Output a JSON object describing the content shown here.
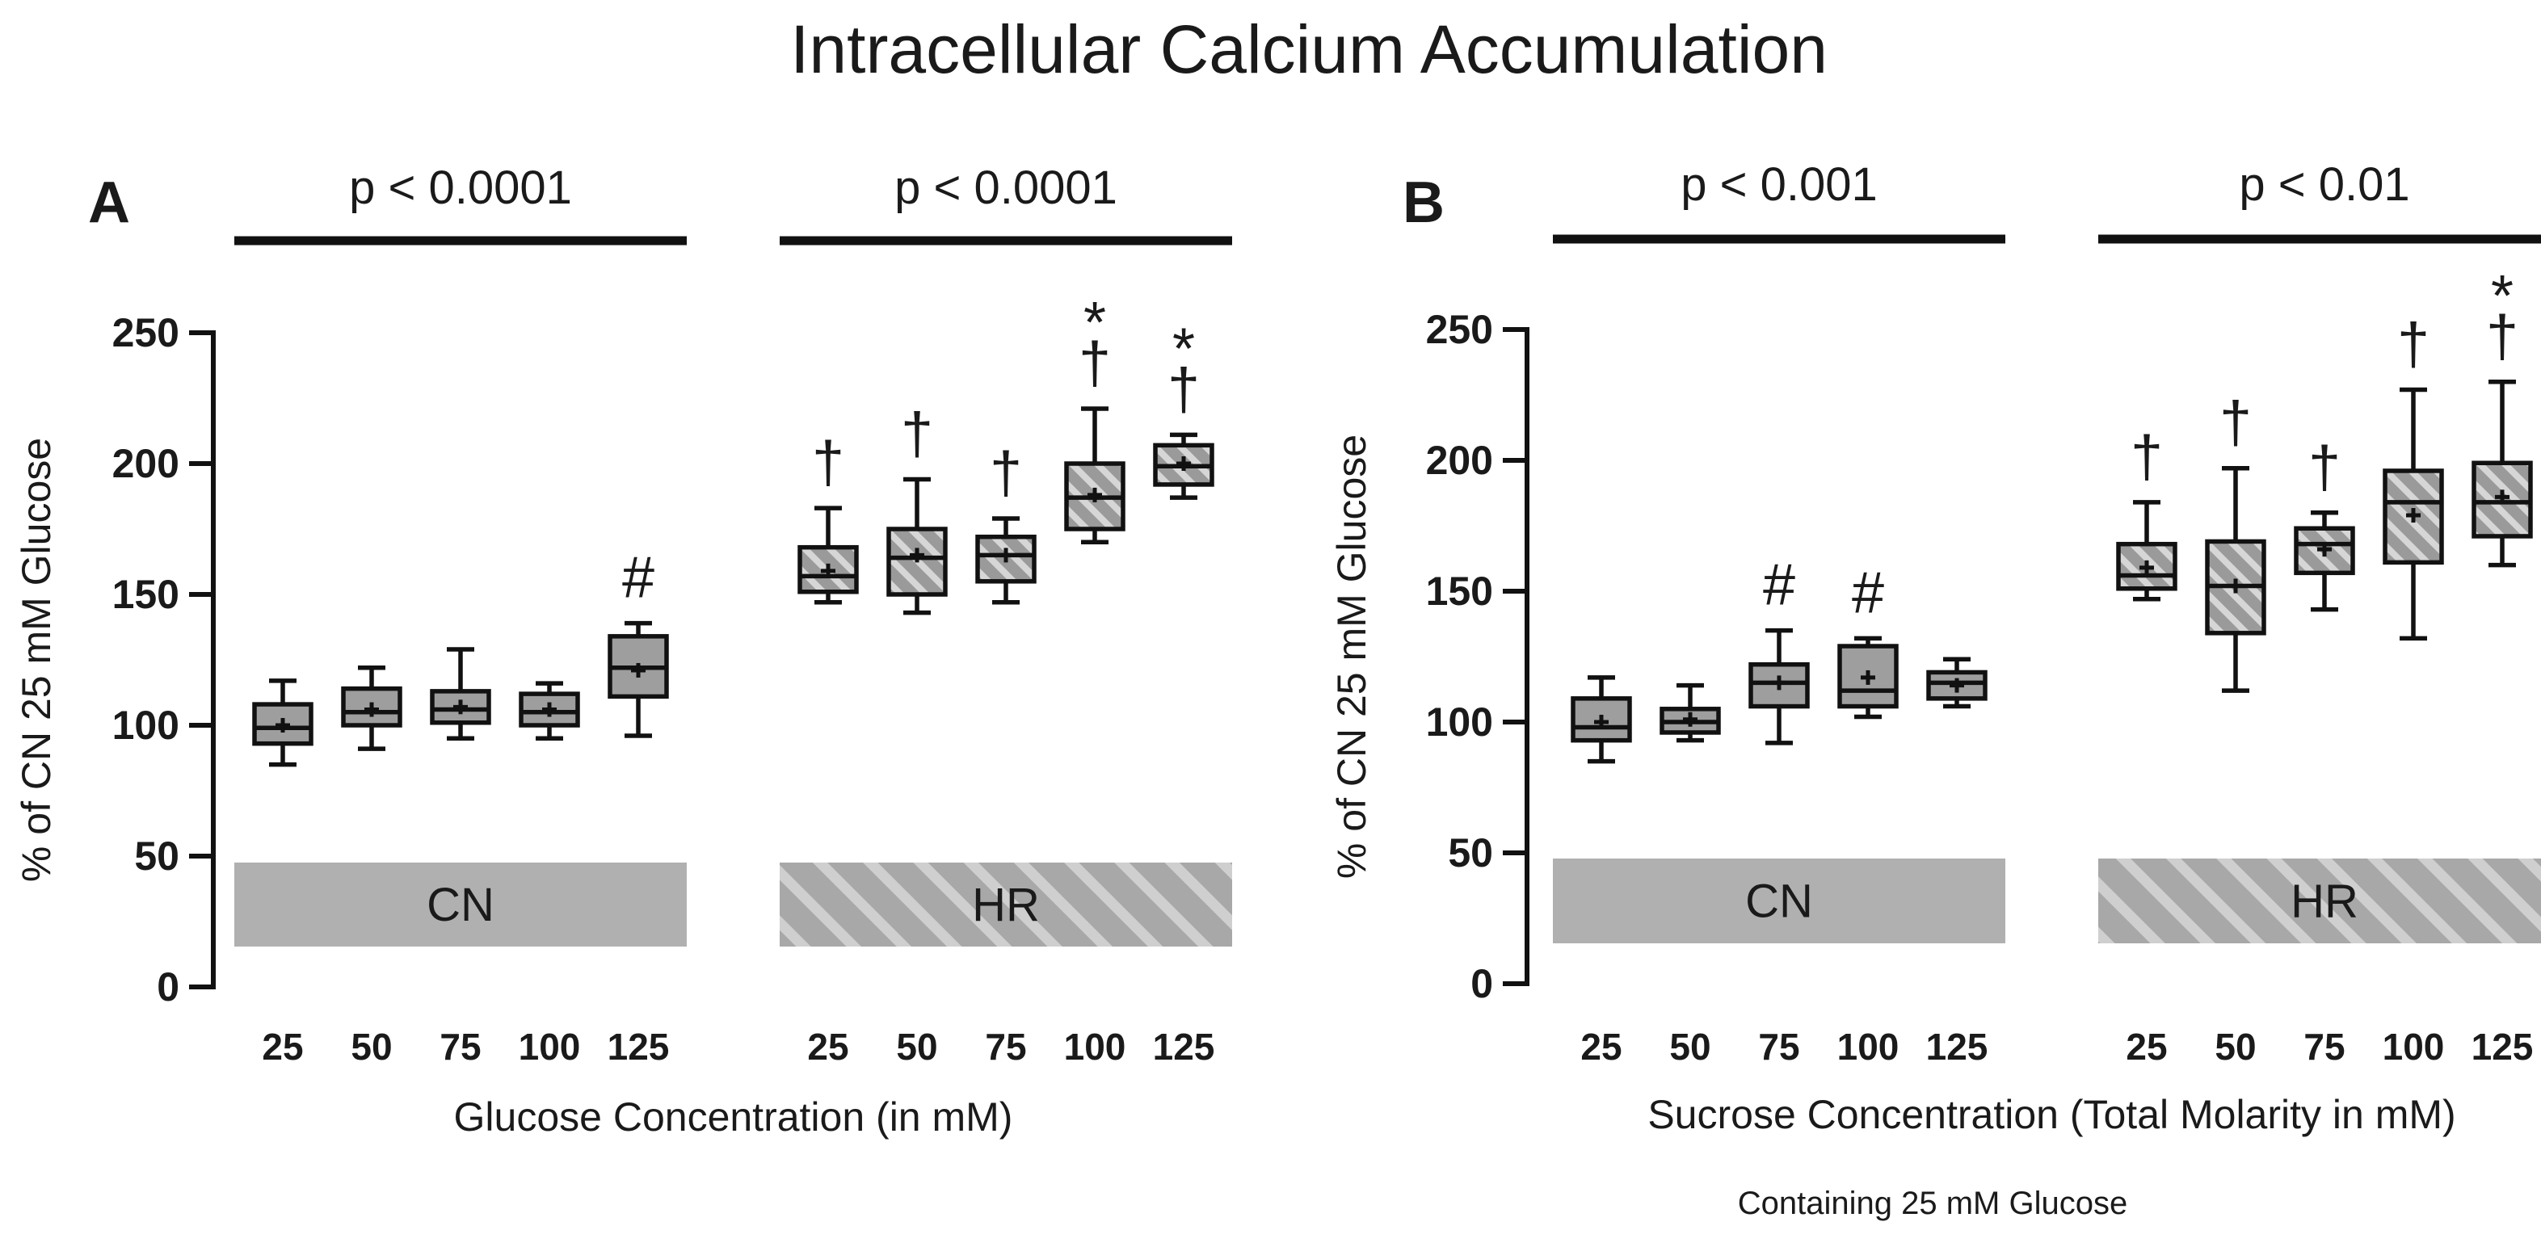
{
  "title": "Intracellular Calcium Accumulation",
  "colors": {
    "cn_fill": "#9e9e9e",
    "hr_base": "#9a9a9a",
    "hr_stripe": "#d6d6d6",
    "banner_cn": "#b0b0b0",
    "banner_hr_base": "#a8a8a8",
    "banner_hr_stripe": "#cfcfcf",
    "ink": "#1a1a1a"
  },
  "chart_data": [
    {
      "panel": "A",
      "type": "box",
      "title": "",
      "xlabel": "Glucose Concentration (in mM)",
      "ylabel": "% of CN 25 mM Glucose",
      "ylim": [
        0,
        250
      ],
      "yticks": [
        0,
        50,
        100,
        150,
        200,
        250
      ],
      "categories": [
        "25",
        "50",
        "75",
        "100",
        "125",
        "25",
        "50",
        "75",
        "100",
        "125"
      ],
      "groups": [
        {
          "name": "CN",
          "banner_label": "CN",
          "pvalue": "p < 0.0001",
          "pattern": "solid"
        },
        {
          "name": "HR",
          "banner_label": "HR",
          "pvalue": "p < 0.0001",
          "pattern": "hatched"
        }
      ],
      "boxes": [
        {
          "group": "CN",
          "x": "25",
          "min": 85,
          "q1": 93,
          "median": 99,
          "q3": 108,
          "max": 117,
          "mean": 100,
          "marks": []
        },
        {
          "group": "CN",
          "x": "50",
          "min": 91,
          "q1": 100,
          "median": 105,
          "q3": 114,
          "max": 122,
          "mean": 106,
          "marks": []
        },
        {
          "group": "CN",
          "x": "75",
          "min": 95,
          "q1": 101,
          "median": 106,
          "q3": 113,
          "max": 129,
          "mean": 107,
          "marks": []
        },
        {
          "group": "CN",
          "x": "100",
          "min": 95,
          "q1": 100,
          "median": 105,
          "q3": 112,
          "max": 116,
          "mean": 106,
          "marks": []
        },
        {
          "group": "CN",
          "x": "125",
          "min": 96,
          "q1": 111,
          "median": 122,
          "q3": 134,
          "max": 139,
          "mean": 121,
          "marks": [
            "#"
          ]
        },
        {
          "group": "HR",
          "x": "25",
          "min": 147,
          "q1": 151,
          "median": 157,
          "q3": 168,
          "max": 183,
          "mean": 159,
          "marks": [
            "†"
          ]
        },
        {
          "group": "HR",
          "x": "50",
          "min": 143,
          "q1": 150,
          "median": 164,
          "q3": 175,
          "max": 194,
          "mean": 165,
          "marks": [
            "†"
          ]
        },
        {
          "group": "HR",
          "x": "75",
          "min": 147,
          "q1": 155,
          "median": 165,
          "q3": 172,
          "max": 179,
          "mean": 165,
          "marks": [
            "†"
          ]
        },
        {
          "group": "HR",
          "x": "100",
          "min": 170,
          "q1": 175,
          "median": 187,
          "q3": 200,
          "max": 221,
          "mean": 188,
          "marks": [
            "†",
            "*"
          ]
        },
        {
          "group": "HR",
          "x": "125",
          "min": 187,
          "q1": 192,
          "median": 199,
          "q3": 207,
          "max": 211,
          "mean": 200,
          "marks": [
            "†",
            "*"
          ]
        }
      ]
    },
    {
      "panel": "B",
      "type": "box",
      "title": "",
      "xlabel": "Sucrose Concentration (Total Molarity in mM)",
      "xsublabel": "Containing 25 mM Glucose",
      "ylabel": "% of CN 25 mM Glucose",
      "ylim": [
        0,
        250
      ],
      "yticks": [
        0,
        50,
        100,
        150,
        200,
        250
      ],
      "categories": [
        "25",
        "50",
        "75",
        "100",
        "125",
        "25",
        "50",
        "75",
        "100",
        "125"
      ],
      "groups": [
        {
          "name": "CN",
          "banner_label": "CN",
          "pvalue": "p < 0.001",
          "pattern": "solid"
        },
        {
          "name": "HR",
          "banner_label": "HR",
          "pvalue": "p < 0.01",
          "pattern": "hatched"
        }
      ],
      "boxes": [
        {
          "group": "CN",
          "x": "25",
          "min": 85,
          "q1": 93,
          "median": 98,
          "q3": 109,
          "max": 117,
          "mean": 100,
          "marks": []
        },
        {
          "group": "CN",
          "x": "50",
          "min": 93,
          "q1": 96,
          "median": 100,
          "q3": 105,
          "max": 114,
          "mean": 101,
          "marks": []
        },
        {
          "group": "CN",
          "x": "75",
          "min": 92,
          "q1": 106,
          "median": 115,
          "q3": 122,
          "max": 135,
          "mean": 115,
          "marks": [
            "#"
          ]
        },
        {
          "group": "CN",
          "x": "100",
          "min": 102,
          "q1": 106,
          "median": 112,
          "q3": 129,
          "max": 132,
          "mean": 117,
          "marks": [
            "#"
          ]
        },
        {
          "group": "CN",
          "x": "125",
          "min": 106,
          "q1": 109,
          "median": 115,
          "q3": 119,
          "max": 124,
          "mean": 114,
          "marks": []
        },
        {
          "group": "HR",
          "x": "25",
          "min": 147,
          "q1": 151,
          "median": 156,
          "q3": 168,
          "max": 184,
          "mean": 159,
          "marks": [
            "†"
          ]
        },
        {
          "group": "HR",
          "x": "50",
          "min": 112,
          "q1": 134,
          "median": 152,
          "q3": 169,
          "max": 197,
          "mean": 152,
          "marks": [
            "†"
          ]
        },
        {
          "group": "HR",
          "x": "75",
          "min": 143,
          "q1": 157,
          "median": 168,
          "q3": 174,
          "max": 180,
          "mean": 166,
          "marks": [
            "†"
          ]
        },
        {
          "group": "HR",
          "x": "100",
          "min": 132,
          "q1": 161,
          "median": 184,
          "q3": 196,
          "max": 227,
          "mean": 179,
          "marks": [
            "†"
          ]
        },
        {
          "group": "HR",
          "x": "125",
          "min": 160,
          "q1": 171,
          "median": 184,
          "q3": 199,
          "max": 230,
          "mean": 186,
          "marks": [
            "†",
            "*"
          ]
        }
      ]
    }
  ]
}
